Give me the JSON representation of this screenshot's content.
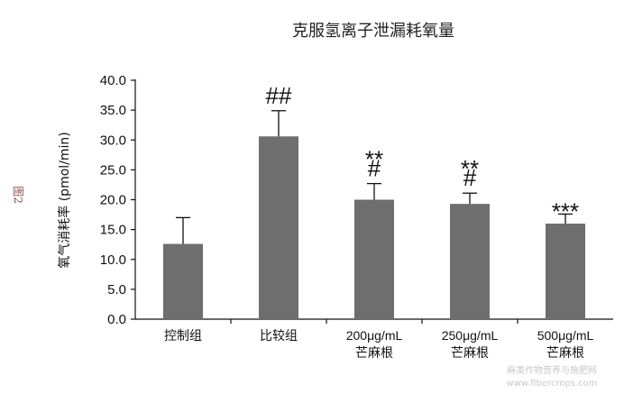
{
  "chart_data": {
    "type": "bar",
    "title": "克服氢离子泄漏耗氧量",
    "ylabel": "氧气消耗率 (pmol/min)",
    "xlabel": "",
    "ylim": [
      0,
      40
    ],
    "yticks": [
      "0.0",
      "5.0",
      "10.0",
      "15.0",
      "20.0",
      "25.0",
      "30.0",
      "35.0",
      "40.0"
    ],
    "categories": [
      [
        "控制组"
      ],
      [
        "比较组"
      ],
      [
        "200μg/mL",
        "芒麻根"
      ],
      [
        "250μg/mL",
        "芒麻根"
      ],
      [
        "500μg/mL",
        "芒麻根"
      ]
    ],
    "values": [
      12.6,
      30.6,
      20.0,
      19.3,
      16.0
    ],
    "errors": [
      4.4,
      4.3,
      2.7,
      1.8,
      1.6
    ],
    "annotations": [
      [],
      [
        "##"
      ],
      [
        "**",
        "#"
      ],
      [
        "**",
        "#"
      ],
      [
        "***"
      ]
    ],
    "bar_color": "#6e6e6e"
  },
  "side_label": "图2",
  "watermark": [
    "麻类作物营养与施肥网",
    "www.fibercrops.com"
  ]
}
